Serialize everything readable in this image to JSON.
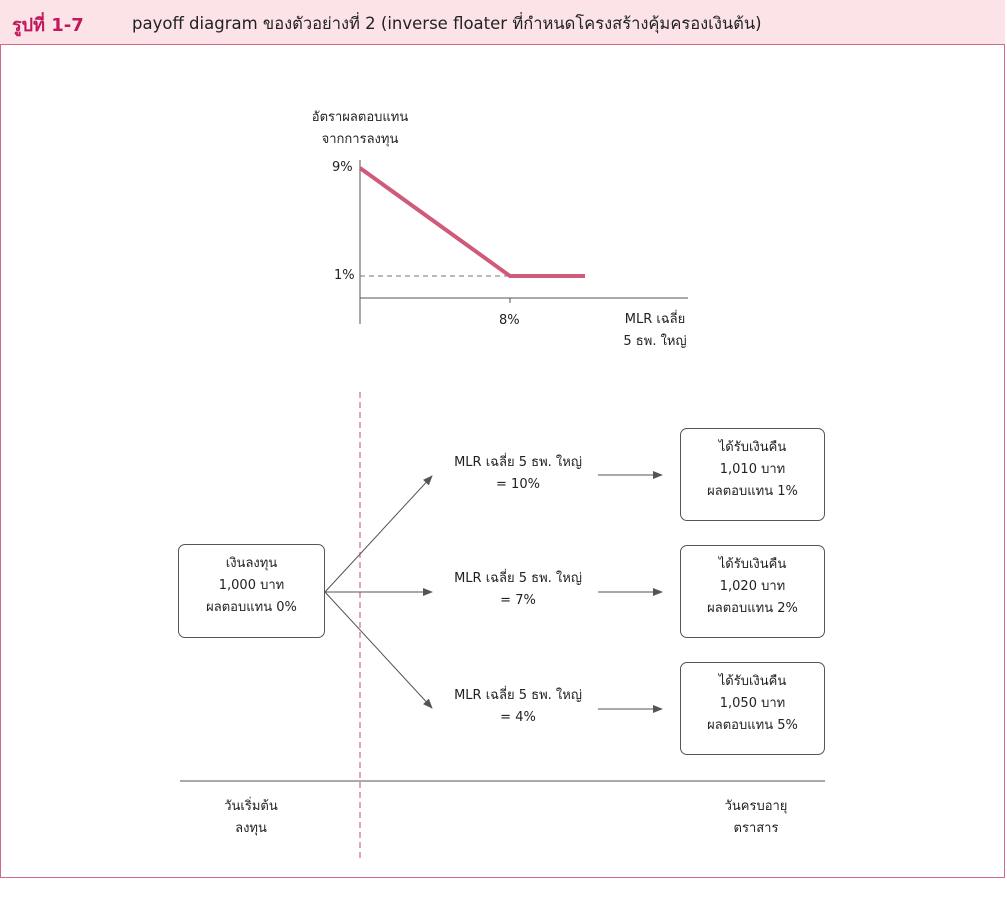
{
  "header": {
    "figure_label": "รูปที่ 1-7",
    "title": "payoff diagram ของตัวอย่างที่ 2 (inverse floater ที่กำหนดโครงสร้างคุ้มครองเงินต้น)"
  },
  "payoff_chart": {
    "y_axis_label_line1": "อัตราผลตอบแทน",
    "y_axis_label_line2": "จากการลงทุน",
    "y_tick_high": "9%",
    "y_tick_low": "1%",
    "x_tick": "8%",
    "x_axis_label_line1": "MLR เฉลี่ย",
    "x_axis_label_line2": "5 ธพ. ใหญ่",
    "line_color": "#d05a7a"
  },
  "chart_data": {
    "type": "line",
    "series": [
      {
        "x": [
          0,
          8,
          12
        ],
        "y": [
          9,
          1,
          1
        ]
      }
    ],
    "xlabel": "MLR เฉลี่ย 5 ธพ. ใหญ่",
    "ylabel": "อัตราผลตอบแทนจากการลงทุน",
    "x_ticks": [
      "8%"
    ],
    "y_ticks": [
      "1%",
      "9%"
    ]
  },
  "flow": {
    "start_box": {
      "line1": "เงินลงทุน",
      "line2": "1,000 บาท",
      "line3": "ผลตอบแทน 0%"
    },
    "scenarios": [
      {
        "condition_line1": "MLR เฉลี่ย 5 ธพ. ใหญ่",
        "condition_line2": "= 10%",
        "result_line1": "ได้รับเงินคืน",
        "result_line2": "1,010 บาท",
        "result_line3": "ผลตอบแทน 1%"
      },
      {
        "condition_line1": "MLR เฉลี่ย 5 ธพ. ใหญ่",
        "condition_line2": "= 7%",
        "result_line1": "ได้รับเงินคืน",
        "result_line2": "1,020 บาท",
        "result_line3": "ผลตอบแทน 2%"
      },
      {
        "condition_line1": "MLR เฉลี่ย 5 ธพ. ใหญ่",
        "condition_line2": "= 4%",
        "result_line1": "ได้รับเงินคืน",
        "result_line2": "1,050 บาท",
        "result_line3": "ผลตอบแทน 5%"
      }
    ],
    "timeline_start_line1": "วันเริ่มต้น",
    "timeline_start_line2": "ลงทุน",
    "timeline_end_line1": "วันครบอายุ",
    "timeline_end_line2": "ตราสาร"
  }
}
